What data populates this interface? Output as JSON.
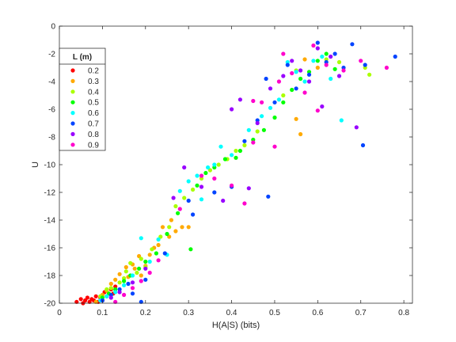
{
  "chart_data": {
    "type": "scatter",
    "xlabel": "H(A|S)  (bits)",
    "ylabel": "U",
    "xlim": [
      0,
      0.82
    ],
    "ylim": [
      -20,
      0
    ],
    "xticks": [
      "0",
      "0.1",
      "0.2",
      "0.3",
      "0.4",
      "0.5",
      "0.6",
      "0.7",
      "0.8"
    ],
    "yticks": [
      "0",
      "-2",
      "-4",
      "-6",
      "-8",
      "-10",
      "-12",
      "-14",
      "-16",
      "-18",
      "-20"
    ],
    "grid": false,
    "legend": {
      "title": "L  (m)",
      "position": "top-left"
    },
    "series": [
      {
        "name": "0.2",
        "color": "#ff0000",
        "points": [
          [
            0.04,
            -19.9
          ],
          [
            0.05,
            -19.7
          ],
          [
            0.055,
            -20
          ],
          [
            0.06,
            -19.8
          ],
          [
            0.065,
            -19.6
          ],
          [
            0.07,
            -19.9
          ],
          [
            0.075,
            -19.7
          ],
          [
            0.08,
            -19.8
          ],
          [
            0.085,
            -19.5
          ],
          [
            0.09,
            -19.9
          ],
          [
            0.095,
            -19.6
          ],
          [
            0.1,
            -19.8
          ],
          [
            0.105,
            -19.2
          ],
          [
            0.11,
            -19.5
          ],
          [
            0.12,
            -19.0
          ],
          [
            0.125,
            -19.3
          ],
          [
            0.13,
            -18.8
          ]
        ]
      },
      {
        "name": "0.3",
        "color": "#ffaa00",
        "points": [
          [
            0.085,
            -19.9
          ],
          [
            0.1,
            -19.4
          ],
          [
            0.11,
            -19.1
          ],
          [
            0.12,
            -18.6
          ],
          [
            0.13,
            -18.3
          ],
          [
            0.14,
            -17.9
          ],
          [
            0.155,
            -17.4
          ],
          [
            0.16,
            -18.1
          ],
          [
            0.17,
            -17.2
          ],
          [
            0.175,
            -17.5
          ],
          [
            0.185,
            -16.6
          ],
          [
            0.19,
            -18.0
          ],
          [
            0.2,
            -17.3
          ],
          [
            0.21,
            -16.5
          ],
          [
            0.22,
            -16.0
          ],
          [
            0.23,
            -15.8
          ],
          [
            0.24,
            -14.5
          ],
          [
            0.255,
            -15.2
          ],
          [
            0.26,
            -14.0
          ],
          [
            0.27,
            -14.8
          ],
          [
            0.285,
            -14.5
          ],
          [
            0.3,
            -14.5
          ],
          [
            0.55,
            -6.7
          ],
          [
            0.56,
            -7.8
          ],
          [
            0.57,
            -2.4
          ],
          [
            0.6,
            -3.0
          ]
        ]
      },
      {
        "name": "0.4",
        "color": "#aaff00",
        "points": [
          [
            0.095,
            -19.5
          ],
          [
            0.11,
            -19.0
          ],
          [
            0.12,
            -18.9
          ],
          [
            0.14,
            -18.5
          ],
          [
            0.15,
            -18.2
          ],
          [
            0.155,
            -17.7
          ],
          [
            0.165,
            -17.1
          ],
          [
            0.18,
            -17.8
          ],
          [
            0.19,
            -16.8
          ],
          [
            0.2,
            -17.4
          ],
          [
            0.215,
            -16.1
          ],
          [
            0.235,
            -15.2
          ],
          [
            0.255,
            -14.5
          ],
          [
            0.27,
            -13.0
          ],
          [
            0.29,
            -12.4
          ],
          [
            0.31,
            -11.8
          ],
          [
            0.33,
            -11.0
          ],
          [
            0.35,
            -10.4
          ],
          [
            0.37,
            -10.0
          ],
          [
            0.39,
            -9.6
          ],
          [
            0.41,
            -9.0
          ],
          [
            0.43,
            -8.6
          ],
          [
            0.46,
            -7.6
          ],
          [
            0.52,
            -5.0
          ],
          [
            0.55,
            -3.2
          ],
          [
            0.62,
            -2.4
          ],
          [
            0.65,
            -2.6
          ],
          [
            0.71,
            -3.0
          ],
          [
            0.72,
            -3.5
          ]
        ]
      },
      {
        "name": "0.5",
        "color": "#00ff00",
        "points": [
          [
            0.1,
            -19.6
          ],
          [
            0.115,
            -19.3
          ],
          [
            0.13,
            -19.0
          ],
          [
            0.15,
            -18.4
          ],
          [
            0.165,
            -18.0
          ],
          [
            0.185,
            -17.5
          ],
          [
            0.2,
            -17.0
          ],
          [
            0.225,
            -16.4
          ],
          [
            0.25,
            -15.0
          ],
          [
            0.275,
            -13.5
          ],
          [
            0.305,
            -16.1
          ],
          [
            0.32,
            -11.5
          ],
          [
            0.34,
            -10.6
          ],
          [
            0.36,
            -10.2
          ],
          [
            0.385,
            -9.6
          ],
          [
            0.41,
            -9.5
          ],
          [
            0.42,
            -9.0
          ],
          [
            0.45,
            -8.2
          ],
          [
            0.475,
            -7.5
          ],
          [
            0.5,
            -6.6
          ],
          [
            0.52,
            -5.5
          ],
          [
            0.54,
            -4.6
          ],
          [
            0.56,
            -3.8
          ],
          [
            0.58,
            -3.3
          ],
          [
            0.6,
            -2.5
          ],
          [
            0.62,
            -2.0
          ],
          [
            0.64,
            -3.1
          ]
        ]
      },
      {
        "name": "0.6",
        "color": "#00ffff",
        "points": [
          [
            0.095,
            -19.8
          ],
          [
            0.11,
            -19.5
          ],
          [
            0.13,
            -19.2
          ],
          [
            0.15,
            -18.7
          ],
          [
            0.17,
            -18.0
          ],
          [
            0.19,
            -15.3
          ],
          [
            0.21,
            -17.0
          ],
          [
            0.23,
            -15.4
          ],
          [
            0.25,
            -16.5
          ],
          [
            0.28,
            -11.9
          ],
          [
            0.3,
            -11.2
          ],
          [
            0.32,
            -10.8
          ],
          [
            0.33,
            -12.5
          ],
          [
            0.345,
            -10.2
          ],
          [
            0.36,
            -10.0
          ],
          [
            0.375,
            -8.7
          ],
          [
            0.4,
            -9.3
          ],
          [
            0.44,
            -7.5
          ],
          [
            0.47,
            -6.5
          ],
          [
            0.49,
            -5.9
          ],
          [
            0.51,
            -5.3
          ],
          [
            0.53,
            -2.6
          ],
          [
            0.55,
            -3.3
          ],
          [
            0.57,
            -4.0
          ],
          [
            0.59,
            -2.5
          ],
          [
            0.61,
            -2.2
          ],
          [
            0.63,
            -3.8
          ],
          [
            0.655,
            -6.8
          ]
        ]
      },
      {
        "name": "0.7",
        "color": "#0044ff",
        "points": [
          [
            0.1,
            -19.8
          ],
          [
            0.12,
            -19.4
          ],
          [
            0.14,
            -19.0
          ],
          [
            0.16,
            -18.6
          ],
          [
            0.17,
            -19.3
          ],
          [
            0.19,
            -19.9
          ],
          [
            0.2,
            -18.3
          ],
          [
            0.245,
            -16.4
          ],
          [
            0.3,
            -12.6
          ],
          [
            0.31,
            -13.6
          ],
          [
            0.36,
            -12.0
          ],
          [
            0.4,
            -11.6
          ],
          [
            0.43,
            -8.3
          ],
          [
            0.46,
            -6.8
          ],
          [
            0.48,
            -3.8
          ],
          [
            0.485,
            -12.3
          ],
          [
            0.5,
            -5.5
          ],
          [
            0.53,
            -2.8
          ],
          [
            0.55,
            -4.5
          ],
          [
            0.58,
            -3.5
          ],
          [
            0.6,
            -1.2
          ],
          [
            0.62,
            -2.6
          ],
          [
            0.64,
            -2.0
          ],
          [
            0.66,
            -3.0
          ],
          [
            0.68,
            -1.3
          ],
          [
            0.705,
            -8.6
          ],
          [
            0.71,
            -2.8
          ],
          [
            0.78,
            -2.2
          ]
        ]
      },
      {
        "name": "0.8",
        "color": "#9900ff",
        "points": [
          [
            0.12,
            -19.6
          ],
          [
            0.14,
            -19.2
          ],
          [
            0.17,
            -18.5
          ],
          [
            0.2,
            -17.5
          ],
          [
            0.265,
            -12.4
          ],
          [
            0.29,
            -10.2
          ],
          [
            0.33,
            -11.6
          ],
          [
            0.38,
            -12.6
          ],
          [
            0.4,
            -6.0
          ],
          [
            0.42,
            -5.3
          ],
          [
            0.44,
            -11.7
          ],
          [
            0.46,
            -7.0
          ],
          [
            0.49,
            -4.5
          ],
          [
            0.52,
            -3.6
          ],
          [
            0.54,
            -2.5
          ],
          [
            0.56,
            -3.2
          ],
          [
            0.58,
            -4.0
          ],
          [
            0.6,
            -1.6
          ],
          [
            0.61,
            -5.8
          ],
          [
            0.63,
            -2.2
          ],
          [
            0.65,
            -3.6
          ],
          [
            0.69,
            -7.3
          ]
        ]
      },
      {
        "name": "0.9",
        "color": "#ff00cc",
        "points": [
          [
            0.13,
            -19.9
          ],
          [
            0.15,
            -19.4
          ],
          [
            0.17,
            -18.9
          ],
          [
            0.19,
            -18.4
          ],
          [
            0.21,
            -17.8
          ],
          [
            0.23,
            -16.9
          ],
          [
            0.28,
            -13.2
          ],
          [
            0.33,
            -10.8
          ],
          [
            0.36,
            -11.0
          ],
          [
            0.4,
            -11.5
          ],
          [
            0.43,
            -12.8
          ],
          [
            0.45,
            -8.4
          ],
          [
            0.45,
            -5.4
          ],
          [
            0.47,
            -5.5
          ],
          [
            0.5,
            -8.7
          ],
          [
            0.51,
            -4.0
          ],
          [
            0.52,
            -2.0
          ],
          [
            0.54,
            -3.4
          ],
          [
            0.57,
            -4.8
          ],
          [
            0.59,
            -1.4
          ],
          [
            0.6,
            -6.1
          ],
          [
            0.62,
            -2.8
          ],
          [
            0.66,
            -3.2
          ],
          [
            0.7,
            -2.5
          ],
          [
            0.76,
            -3.0
          ]
        ]
      }
    ]
  }
}
